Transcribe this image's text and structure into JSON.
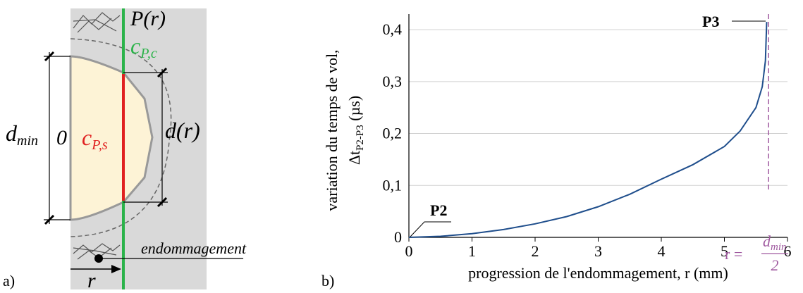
{
  "diagram": {
    "panel": "a)",
    "line_label": "P(r)",
    "c_pc": {
      "main": "c",
      "sub": "P,c"
    },
    "c_ps": {
      "main": "c",
      "sub": "P,s"
    },
    "d_min": {
      "main": "d",
      "sub": "min"
    },
    "zero": "0",
    "d_r": "d(r)",
    "damage": "endommagement",
    "r": "r"
  },
  "chart_data": {
    "type": "line",
    "panel": "b)",
    "xlabel": "progression de l'endommagement, r (mm)",
    "ylabel": {
      "line1": "variation du temps de vol,",
      "main": "Δt",
      "sub": "P2-P3",
      "unit": " (µs)"
    },
    "x": [
      0,
      0.5,
      1,
      1.5,
      2,
      2.5,
      3,
      3.5,
      4,
      4.5,
      5,
      5.25,
      5.5,
      5.6,
      5.65,
      5.67
    ],
    "values": [
      0,
      0.002,
      0.007,
      0.015,
      0.026,
      0.04,
      0.059,
      0.083,
      0.112,
      0.14,
      0.175,
      0.205,
      0.25,
      0.29,
      0.34,
      0.415
    ],
    "color": "#1f4e8c",
    "xlim": [
      0,
      6
    ],
    "xticks": [
      0,
      1,
      2,
      3,
      4,
      5,
      6
    ],
    "ylim": [
      0,
      0.43
    ],
    "yticks": [
      0,
      {
        "value": 0.1,
        "label": "0,1"
      },
      {
        "value": 0.2,
        "label": "0,2"
      },
      {
        "value": 0.3,
        "label": "0,3"
      },
      {
        "value": 0.4,
        "label": "0,4"
      }
    ],
    "grid": true,
    "annotations": {
      "start": "P2",
      "end": "P3"
    },
    "vline": {
      "x": 5.7,
      "color": "#a05aa0",
      "prefix": "r =",
      "num": "d",
      "num_sub": "min",
      "den": "2"
    }
  }
}
